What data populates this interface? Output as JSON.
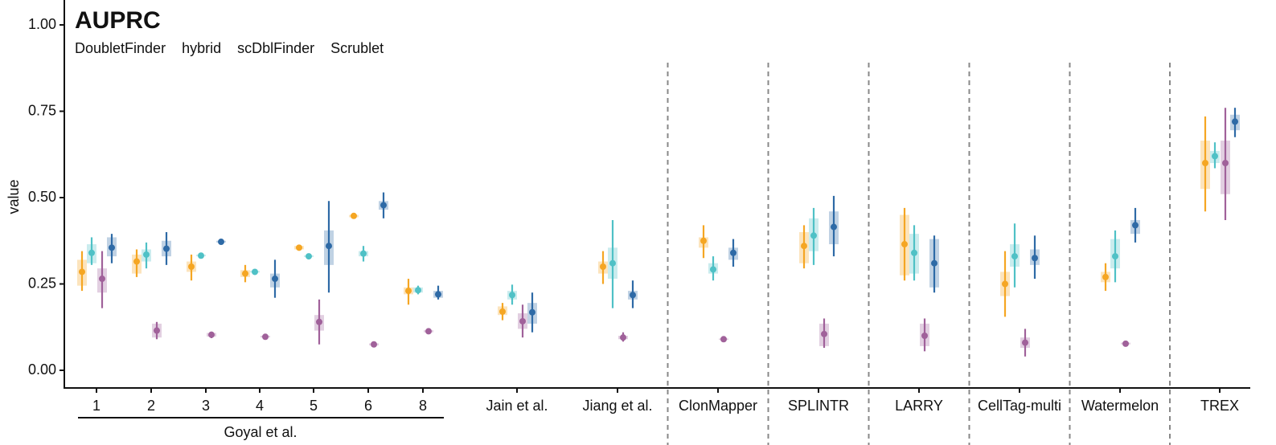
{
  "chart_data": {
    "type": "box",
    "title": "AUPRC",
    "y_label": "value",
    "group_label": "Goyal et al.",
    "categories": [
      "1",
      "2",
      "3",
      "4",
      "5",
      "6",
      "8",
      "Jain et al.",
      "Jiang et al.",
      "ClonMapper",
      "SPLINTR",
      "LARRY",
      "CellTag-multi",
      "Watermelon",
      "TREX"
    ],
    "ylim": [
      -0.05,
      1.07
    ],
    "yticks": [
      {
        "value": 0,
        "label": "0.00"
      },
      {
        "value": 0.25,
        "label": "0.25"
      },
      {
        "value": 0.5,
        "label": "0.50"
      },
      {
        "value": 0.75,
        "label": "0.75"
      },
      {
        "value": 1,
        "label": "1.00"
      }
    ],
    "series": [
      {
        "name": "DoubletFinder",
        "color": "#f5a623",
        "values": [
          0.285,
          0.315,
          0.3,
          0.28,
          0.355,
          0.447,
          0.23,
          0.17,
          0.3,
          0.375,
          0.36,
          0.365,
          0.25,
          0.27,
          0.6
        ],
        "q1": [
          0.245,
          0.28,
          0.285,
          0.27,
          0.35,
          0.443,
          0.22,
          0.16,
          0.28,
          0.355,
          0.31,
          0.275,
          0.215,
          0.255,
          0.525
        ],
        "q3": [
          0.32,
          0.335,
          0.315,
          0.29,
          0.36,
          0.45,
          0.24,
          0.185,
          0.315,
          0.385,
          0.4,
          0.45,
          0.285,
          0.285,
          0.665
        ],
        "min": [
          0.23,
          0.27,
          0.26,
          0.255,
          0.35,
          0.44,
          0.19,
          0.145,
          0.25,
          0.325,
          0.295,
          0.26,
          0.155,
          0.23,
          0.46
        ],
        "max": [
          0.345,
          0.35,
          0.335,
          0.305,
          0.36,
          0.452,
          0.265,
          0.195,
          0.345,
          0.42,
          0.42,
          0.47,
          0.345,
          0.31,
          0.735
        ]
      },
      {
        "name": "hybrid",
        "color": "#4fc1c6",
        "values": [
          0.34,
          0.335,
          0.332,
          0.285,
          0.33,
          0.338,
          0.232,
          0.218,
          0.31,
          0.292,
          0.39,
          0.34,
          0.33,
          0.33,
          0.62
        ],
        "q1": [
          0.31,
          0.315,
          0.33,
          0.283,
          0.328,
          0.33,
          0.225,
          0.205,
          0.265,
          0.28,
          0.345,
          0.28,
          0.3,
          0.295,
          0.6
        ],
        "q3": [
          0.365,
          0.35,
          0.335,
          0.288,
          0.333,
          0.345,
          0.24,
          0.23,
          0.355,
          0.31,
          0.44,
          0.395,
          0.365,
          0.38,
          0.635
        ],
        "min": [
          0.305,
          0.295,
          0.33,
          0.283,
          0.328,
          0.315,
          0.22,
          0.19,
          0.18,
          0.26,
          0.305,
          0.26,
          0.24,
          0.255,
          0.585
        ],
        "max": [
          0.385,
          0.37,
          0.335,
          0.288,
          0.333,
          0.36,
          0.245,
          0.248,
          0.435,
          0.33,
          0.47,
          0.42,
          0.425,
          0.405,
          0.66
        ]
      },
      {
        "name": "scDblFinder",
        "color": "#a0619a",
        "values": [
          0.265,
          0.115,
          0.103,
          0.097,
          0.14,
          0.075,
          0.113,
          0.142,
          0.095,
          0.09,
          0.105,
          0.1,
          0.08,
          0.077,
          0.6
        ],
        "q1": [
          0.225,
          0.095,
          0.098,
          0.095,
          0.115,
          0.072,
          0.11,
          0.12,
          0.09,
          0.088,
          0.07,
          0.07,
          0.065,
          0.075,
          0.51
        ],
        "q3": [
          0.295,
          0.135,
          0.108,
          0.1,
          0.16,
          0.078,
          0.116,
          0.165,
          0.1,
          0.092,
          0.135,
          0.135,
          0.095,
          0.08,
          0.665
        ],
        "min": [
          0.18,
          0.09,
          0.093,
          0.093,
          0.075,
          0.07,
          0.11,
          0.095,
          0.083,
          0.087,
          0.065,
          0.055,
          0.04,
          0.073,
          0.435
        ],
        "max": [
          0.345,
          0.14,
          0.112,
          0.1,
          0.205,
          0.08,
          0.116,
          0.19,
          0.11,
          0.093,
          0.15,
          0.15,
          0.12,
          0.08,
          0.76
        ]
      },
      {
        "name": "Scrublet",
        "color": "#2e6aa6",
        "values": [
          0.355,
          0.352,
          0.372,
          0.265,
          0.36,
          0.478,
          0.22,
          0.168,
          0.218,
          0.34,
          0.415,
          0.31,
          0.325,
          0.42,
          0.72
        ],
        "q1": [
          0.33,
          0.33,
          0.37,
          0.24,
          0.305,
          0.465,
          0.21,
          0.135,
          0.205,
          0.32,
          0.365,
          0.24,
          0.305,
          0.395,
          0.695
        ],
        "q3": [
          0.385,
          0.375,
          0.375,
          0.28,
          0.405,
          0.49,
          0.23,
          0.195,
          0.23,
          0.355,
          0.46,
          0.38,
          0.35,
          0.435,
          0.74
        ],
        "min": [
          0.31,
          0.305,
          0.37,
          0.21,
          0.225,
          0.44,
          0.205,
          0.11,
          0.18,
          0.3,
          0.33,
          0.225,
          0.265,
          0.37,
          0.675
        ],
        "max": [
          0.395,
          0.4,
          0.375,
          0.32,
          0.49,
          0.515,
          0.245,
          0.225,
          0.26,
          0.38,
          0.505,
          0.39,
          0.39,
          0.47,
          0.76
        ]
      }
    ]
  }
}
